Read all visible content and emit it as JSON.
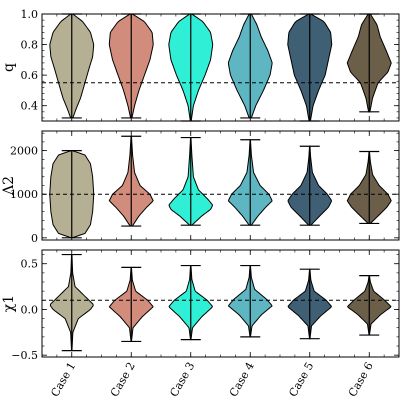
{
  "chart_data": {
    "type": "violin",
    "categories": [
      "Case 1",
      "Case 2",
      "Case 3",
      "Case 4",
      "Case 5",
      "Case 6"
    ],
    "colors": [
      "#b5b093",
      "#d18c7b",
      "#2ff0d6",
      "#5db6c1",
      "#3f5f75",
      "#6b5f4a"
    ],
    "panels": [
      {
        "ylabel": "q",
        "ylim": [
          0.3,
          1.0
        ],
        "yticks": [
          0.4,
          0.6,
          0.8,
          1.0
        ],
        "ytick_labels": [
          "0.4",
          "0.6",
          "0.8",
          "1.0"
        ],
        "reference_line": 0.55,
        "series": [
          {
            "min": 0.32,
            "max": 1.0,
            "profile": [
              [
                0.32,
                0.05
              ],
              [
                0.38,
                0.2
              ],
              [
                0.45,
                0.4
              ],
              [
                0.55,
                0.6
              ],
              [
                0.65,
                0.8
              ],
              [
                0.72,
                0.95
              ],
              [
                0.8,
                1.0
              ],
              [
                0.88,
                0.85
              ],
              [
                0.95,
                0.5
              ],
              [
                1.0,
                0.05
              ]
            ]
          },
          {
            "min": 0.32,
            "max": 1.0,
            "profile": [
              [
                0.32,
                0.03
              ],
              [
                0.4,
                0.15
              ],
              [
                0.5,
                0.35
              ],
              [
                0.6,
                0.6
              ],
              [
                0.7,
                0.85
              ],
              [
                0.8,
                1.0
              ],
              [
                0.88,
                0.95
              ],
              [
                0.95,
                0.6
              ],
              [
                1.0,
                0.05
              ]
            ]
          },
          {
            "min": 0.3,
            "max": 1.0,
            "profile": [
              [
                0.3,
                0.02
              ],
              [
                0.4,
                0.12
              ],
              [
                0.5,
                0.35
              ],
              [
                0.6,
                0.65
              ],
              [
                0.7,
                0.9
              ],
              [
                0.8,
                1.0
              ],
              [
                0.88,
                0.9
              ],
              [
                0.95,
                0.55
              ],
              [
                1.0,
                0.05
              ]
            ]
          },
          {
            "min": 0.32,
            "max": 1.0,
            "profile": [
              [
                0.32,
                0.05
              ],
              [
                0.4,
                0.25
              ],
              [
                0.5,
                0.6
              ],
              [
                0.6,
                0.9
              ],
              [
                0.68,
                1.0
              ],
              [
                0.76,
                0.8
              ],
              [
                0.85,
                0.5
              ],
              [
                0.93,
                0.3
              ],
              [
                1.0,
                0.05
              ]
            ]
          },
          {
            "min": 0.3,
            "max": 1.0,
            "profile": [
              [
                0.3,
                0.03
              ],
              [
                0.4,
                0.15
              ],
              [
                0.5,
                0.4
              ],
              [
                0.6,
                0.7
              ],
              [
                0.7,
                0.85
              ],
              [
                0.8,
                1.0
              ],
              [
                0.88,
                0.95
              ],
              [
                0.95,
                0.65
              ],
              [
                1.0,
                0.05
              ]
            ]
          },
          {
            "min": 0.36,
            "max": 1.0,
            "profile": [
              [
                0.36,
                0.03
              ],
              [
                0.45,
                0.15
              ],
              [
                0.55,
                0.4
              ],
              [
                0.62,
                0.85
              ],
              [
                0.68,
                1.0
              ],
              [
                0.75,
                0.8
              ],
              [
                0.85,
                0.5
              ],
              [
                0.93,
                0.35
              ],
              [
                1.0,
                0.05
              ]
            ]
          }
        ]
      },
      {
        "ylabel": "Λ2",
        "ylim": [
          -50,
          2450
        ],
        "yticks": [
          0,
          1000,
          2000
        ],
        "ytick_labels": [
          "0",
          "1000",
          "2000"
        ],
        "reference_line": 1000,
        "series": [
          {
            "min": 0,
            "max": 2000,
            "profile": [
              [
                0,
                0.02
              ],
              [
                100,
                0.6
              ],
              [
                300,
                0.85
              ],
              [
                600,
                0.95
              ],
              [
                1000,
                1.0
              ],
              [
                1400,
                0.95
              ],
              [
                1700,
                0.85
              ],
              [
                1900,
                0.6
              ],
              [
                2000,
                0.02
              ]
            ]
          },
          {
            "min": 270,
            "max": 2330,
            "profile": [
              [
                270,
                0.05
              ],
              [
                500,
                0.35
              ],
              [
                700,
                0.7
              ],
              [
                850,
                1.0
              ],
              [
                1000,
                0.85
              ],
              [
                1200,
                0.4
              ],
              [
                1500,
                0.15
              ],
              [
                1900,
                0.06
              ],
              [
                2330,
                0.01
              ]
            ]
          },
          {
            "min": 290,
            "max": 2300,
            "profile": [
              [
                290,
                0.05
              ],
              [
                500,
                0.5
              ],
              [
                650,
                0.9
              ],
              [
                750,
                1.0
              ],
              [
                900,
                0.75
              ],
              [
                1100,
                0.35
              ],
              [
                1400,
                0.12
              ],
              [
                1900,
                0.05
              ],
              [
                2300,
                0.01
              ]
            ]
          },
          {
            "min": 290,
            "max": 2250,
            "profile": [
              [
                290,
                0.05
              ],
              [
                500,
                0.35
              ],
              [
                700,
                0.7
              ],
              [
                850,
                1.0
              ],
              [
                1000,
                0.85
              ],
              [
                1200,
                0.45
              ],
              [
                1500,
                0.15
              ],
              [
                1900,
                0.05
              ],
              [
                2250,
                0.01
              ]
            ]
          },
          {
            "min": 290,
            "max": 2100,
            "profile": [
              [
                290,
                0.05
              ],
              [
                500,
                0.45
              ],
              [
                700,
                0.85
              ],
              [
                850,
                1.0
              ],
              [
                1000,
                0.8
              ],
              [
                1200,
                0.4
              ],
              [
                1500,
                0.12
              ],
              [
                1850,
                0.04
              ],
              [
                2100,
                0.01
              ]
            ]
          },
          {
            "min": 330,
            "max": 1980,
            "profile": [
              [
                330,
                0.05
              ],
              [
                500,
                0.4
              ],
              [
                700,
                0.8
              ],
              [
                850,
                1.0
              ],
              [
                1000,
                0.85
              ],
              [
                1200,
                0.45
              ],
              [
                1450,
                0.15
              ],
              [
                1750,
                0.05
              ],
              [
                1980,
                0.01
              ]
            ]
          }
        ]
      },
      {
        "ylabel": "χ1",
        "ylim": [
          -0.52,
          0.65
        ],
        "yticks": [
          -0.5,
          0.0,
          0.5
        ],
        "ytick_labels": [
          "−0.5",
          "0.0",
          "0.5"
        ],
        "reference_line": 0.1,
        "series": [
          {
            "min": -0.45,
            "max": 0.6,
            "profile": [
              [
                -0.45,
                0.01
              ],
              [
                -0.25,
                0.05
              ],
              [
                -0.1,
                0.3
              ],
              [
                0.0,
                0.85
              ],
              [
                0.05,
                1.0
              ],
              [
                0.12,
                0.7
              ],
              [
                0.25,
                0.15
              ],
              [
                0.4,
                0.04
              ],
              [
                0.6,
                0.01
              ]
            ]
          },
          {
            "min": -0.35,
            "max": 0.46,
            "profile": [
              [
                -0.35,
                0.01
              ],
              [
                -0.2,
                0.08
              ],
              [
                -0.08,
                0.5
              ],
              [
                0.03,
                1.0
              ],
              [
                0.1,
                0.75
              ],
              [
                0.2,
                0.2
              ],
              [
                0.32,
                0.05
              ],
              [
                0.46,
                0.01
              ]
            ]
          },
          {
            "min": -0.33,
            "max": 0.48,
            "profile": [
              [
                -0.33,
                0.01
              ],
              [
                -0.2,
                0.08
              ],
              [
                -0.08,
                0.5
              ],
              [
                0.03,
                1.0
              ],
              [
                0.1,
                0.75
              ],
              [
                0.2,
                0.2
              ],
              [
                0.33,
                0.05
              ],
              [
                0.48,
                0.01
              ]
            ]
          },
          {
            "min": -0.3,
            "max": 0.48,
            "profile": [
              [
                -0.3,
                0.01
              ],
              [
                -0.18,
                0.08
              ],
              [
                -0.06,
                0.5
              ],
              [
                0.04,
                1.0
              ],
              [
                0.11,
                0.75
              ],
              [
                0.22,
                0.2
              ],
              [
                0.35,
                0.05
              ],
              [
                0.48,
                0.01
              ]
            ]
          },
          {
            "min": -0.32,
            "max": 0.44,
            "profile": [
              [
                -0.32,
                0.01
              ],
              [
                -0.18,
                0.08
              ],
              [
                -0.07,
                0.5
              ],
              [
                0.03,
                1.0
              ],
              [
                0.1,
                0.75
              ],
              [
                0.2,
                0.2
              ],
              [
                0.32,
                0.05
              ],
              [
                0.44,
                0.01
              ]
            ]
          },
          {
            "min": -0.28,
            "max": 0.37,
            "profile": [
              [
                -0.28,
                0.01
              ],
              [
                -0.16,
                0.08
              ],
              [
                -0.06,
                0.5
              ],
              [
                0.03,
                1.0
              ],
              [
                0.1,
                0.7
              ],
              [
                0.2,
                0.2
              ],
              [
                0.3,
                0.05
              ],
              [
                0.37,
                0.01
              ]
            ]
          }
        ]
      }
    ],
    "grid": false,
    "legend": "none"
  }
}
